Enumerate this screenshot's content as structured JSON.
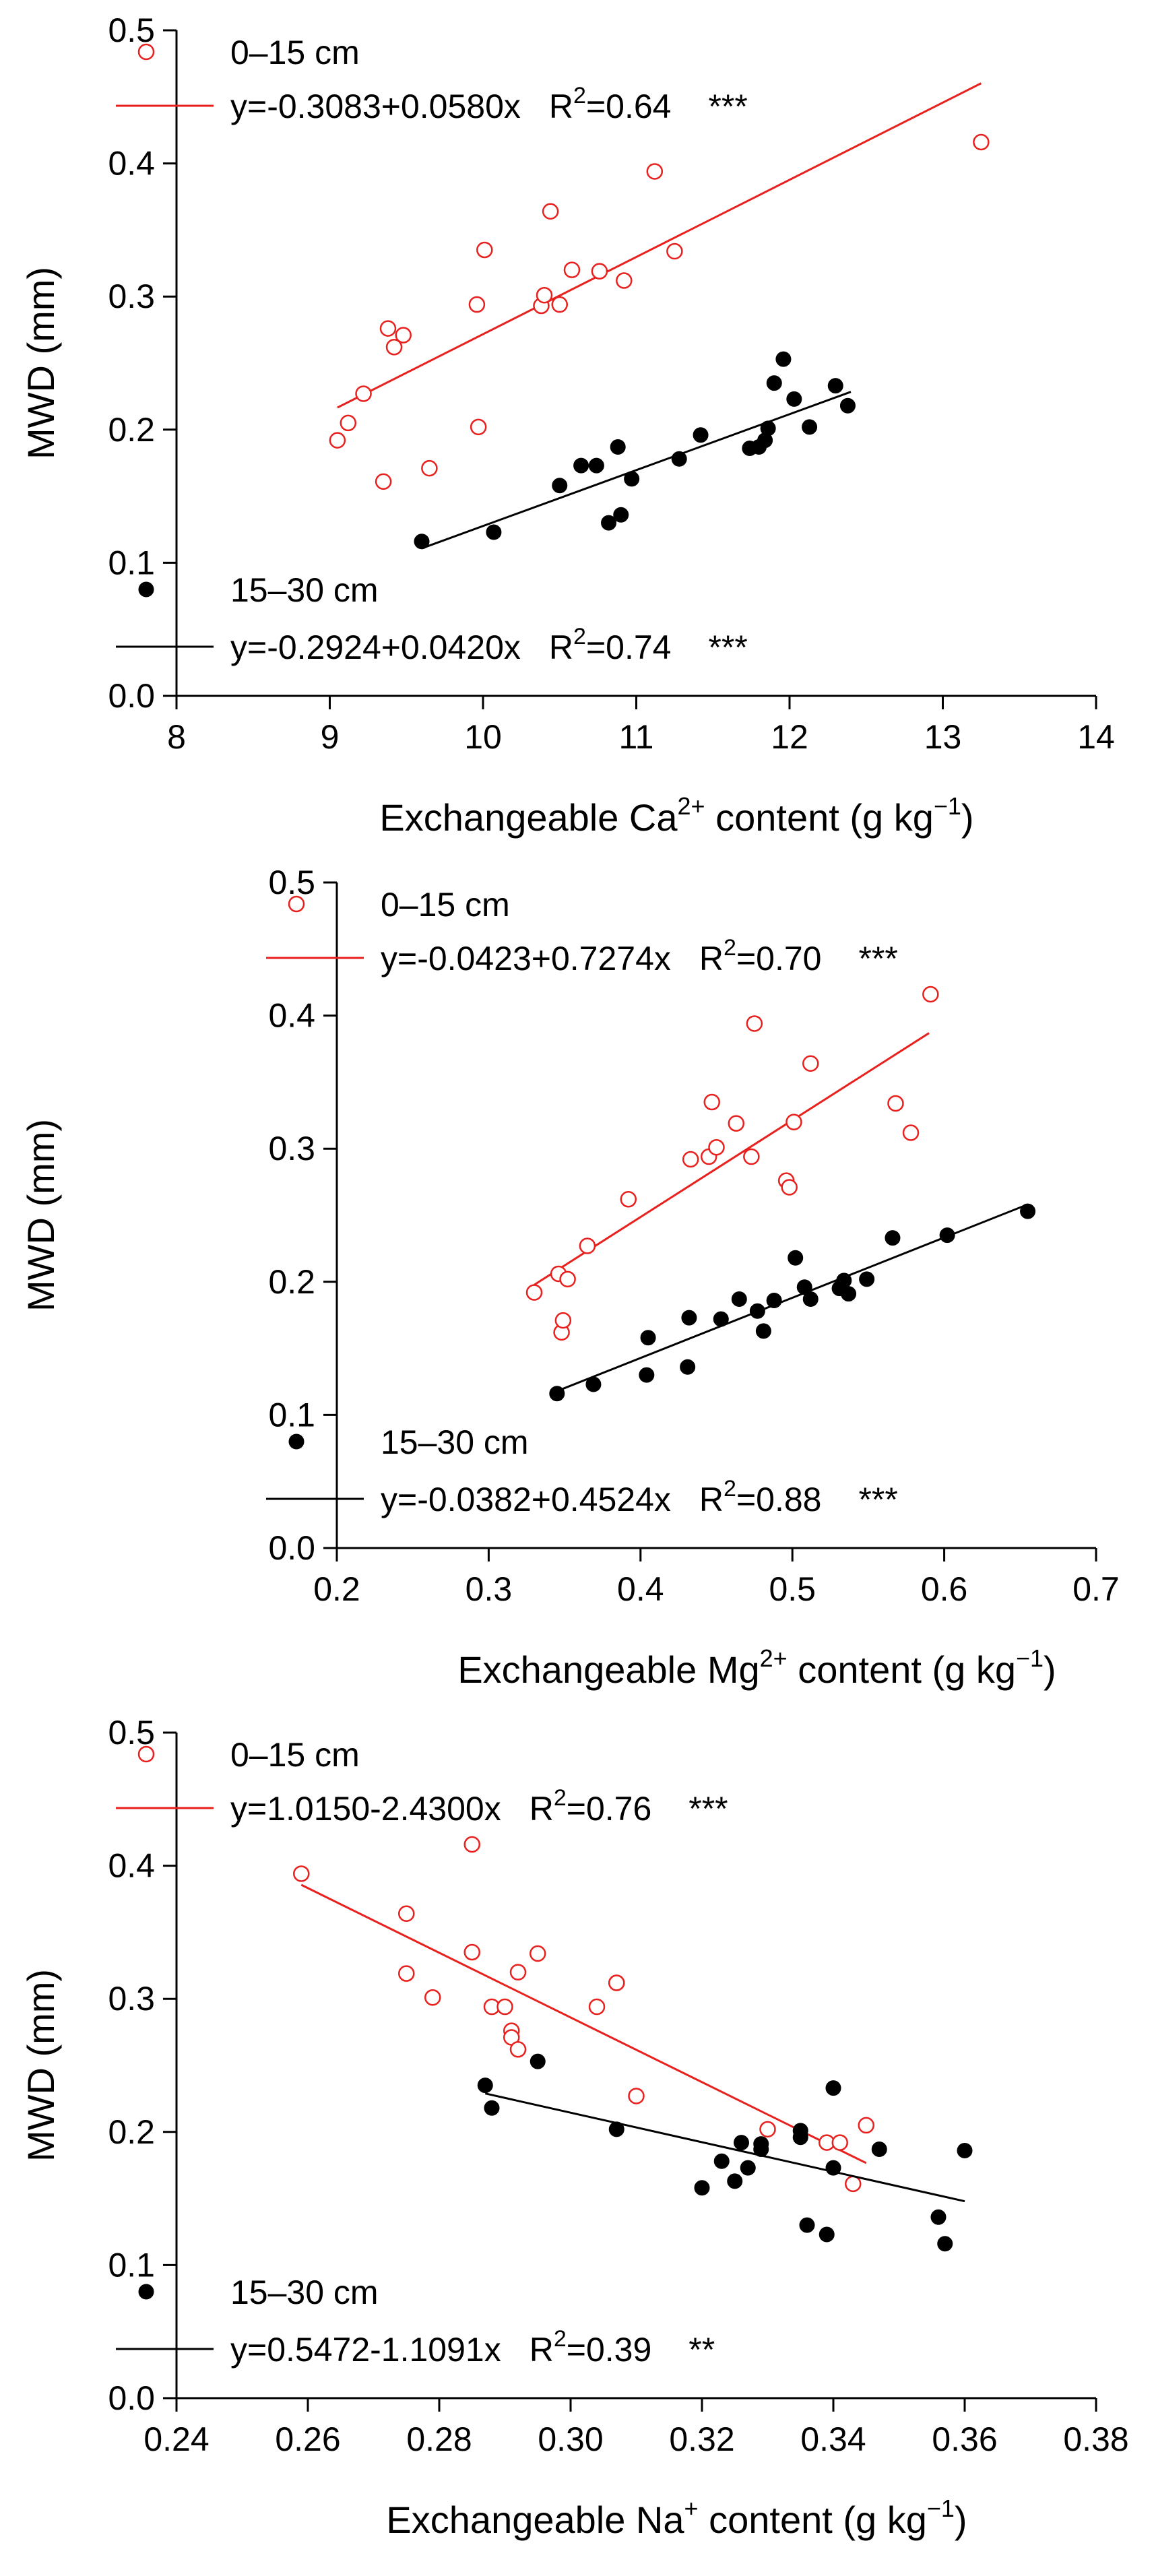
{
  "colors": {
    "series_0_15": "#e8211e",
    "series_15_30": "#000000"
  },
  "chart_data": [
    {
      "type": "scatter",
      "ylabel": "MWD (mm)",
      "xlabel_prefix": "Exchangeable Ca",
      "xlabel_ion_sup": "2+",
      "xlabel_unit": " content (g kg",
      "xlabel_unit_sup": "−1",
      "xlabel_unit_end": ")",
      "xlim": [
        8,
        14
      ],
      "ylim": [
        0.0,
        0.5
      ],
      "xticks": [
        8,
        9,
        10,
        11,
        12,
        13,
        14
      ],
      "xtick_labels": [
        "8",
        "9",
        "10",
        "11",
        "12",
        "13",
        "14"
      ],
      "yticks": [
        0.0,
        0.1,
        0.2,
        0.3,
        0.4,
        0.5
      ],
      "ytick_labels": [
        "0.0",
        "0.1",
        "0.2",
        "0.3",
        "0.4",
        "0.5"
      ],
      "series": [
        {
          "name": "0–15 cm",
          "marker": "open-circle",
          "fit": {
            "intercept": -0.3083,
            "slope": 0.058,
            "x_range": [
              9.05,
              13.25
            ]
          },
          "eq_text": "y=-0.3083+0.0580x",
          "r2_prefix": "R",
          "r2_sup": "2",
          "r2_value": "=0.64",
          "sig": "***",
          "x": [
            9.05,
            9.12,
            9.22,
            9.35,
            9.38,
            9.42,
            9.48,
            9.65,
            9.96,
            9.97,
            10.01,
            10.38,
            10.4,
            10.44,
            10.5,
            10.58,
            10.76,
            10.92,
            11.12,
            11.25,
            13.25
          ],
          "y": [
            0.192,
            0.205,
            0.227,
            0.161,
            0.276,
            0.262,
            0.271,
            0.171,
            0.294,
            0.202,
            0.335,
            0.293,
            0.301,
            0.364,
            0.294,
            0.32,
            0.319,
            0.312,
            0.394,
            0.334,
            0.416
          ]
        },
        {
          "name": "15–30 cm",
          "marker": "filled-circle",
          "fit": {
            "intercept": -0.2924,
            "slope": 0.042,
            "x_range": [
              9.6,
              12.4
            ]
          },
          "eq_text": "y=-0.2924+0.0420x",
          "r2_prefix": "R",
          "r2_sup": "2",
          "r2_value": "=0.74",
          "sig": "***",
          "x": [
            9.6,
            10.07,
            10.5,
            10.64,
            10.74,
            10.82,
            10.88,
            10.9,
            10.97,
            11.28,
            11.42,
            11.74,
            11.8,
            11.84,
            11.86,
            11.9,
            11.96,
            12.03,
            12.13,
            12.3,
            12.38
          ],
          "y": [
            0.116,
            0.123,
            0.158,
            0.173,
            0.173,
            0.13,
            0.187,
            0.136,
            0.163,
            0.178,
            0.196,
            0.186,
            0.187,
            0.192,
            0.201,
            0.235,
            0.253,
            0.223,
            0.202,
            0.233,
            0.218
          ]
        }
      ]
    },
    {
      "type": "scatter",
      "ylabel": "MWD (mm)",
      "xlabel_prefix": "Exchangeable Mg",
      "xlabel_ion_sup": "2+",
      "xlabel_unit": " content (g kg",
      "xlabel_unit_sup": "−1",
      "xlabel_unit_end": ")",
      "xlim": [
        0.2,
        0.7
      ],
      "ylim": [
        0.0,
        0.5
      ],
      "xticks": [
        0.2,
        0.3,
        0.4,
        0.5,
        0.6,
        0.7
      ],
      "xtick_labels": [
        "0.2",
        "0.3",
        "0.4",
        "0.5",
        "0.6",
        "0.7"
      ],
      "yticks": [
        0.0,
        0.1,
        0.2,
        0.3,
        0.4,
        0.5
      ],
      "ytick_labels": [
        "0.0",
        "0.1",
        "0.2",
        "0.3",
        "0.4",
        "0.5"
      ],
      "series": [
        {
          "name": "0–15 cm",
          "marker": "open-circle",
          "fit": {
            "intercept": -0.0423,
            "slope": 0.7274,
            "x_range": [
              0.33,
              0.59
            ]
          },
          "eq_text": "y=-0.0423+0.7274x",
          "r2_prefix": "R",
          "r2_sup": "2",
          "r2_value": "=0.70",
          "sig": "***",
          "x": [
            0.33,
            0.346,
            0.348,
            0.349,
            0.352,
            0.365,
            0.392,
            0.433,
            0.445,
            0.447,
            0.45,
            0.463,
            0.473,
            0.475,
            0.496,
            0.498,
            0.501,
            0.512,
            0.568,
            0.578,
            0.591
          ],
          "y": [
            0.192,
            0.206,
            0.162,
            0.171,
            0.202,
            0.227,
            0.262,
            0.292,
            0.294,
            0.335,
            0.301,
            0.319,
            0.294,
            0.394,
            0.276,
            0.271,
            0.32,
            0.364,
            0.334,
            0.312,
            0.416
          ]
        },
        {
          "name": "15–30 cm",
          "marker": "filled-circle",
          "fit": {
            "intercept": -0.0382,
            "slope": 0.4524,
            "x_range": [
              0.345,
              0.655
            ]
          },
          "eq_text": "y=-0.0382+0.4524x",
          "r2_prefix": "R",
          "r2_sup": "2",
          "r2_value": "=0.88",
          "sig": "***",
          "x": [
            0.345,
            0.369,
            0.404,
            0.405,
            0.431,
            0.432,
            0.453,
            0.465,
            0.477,
            0.481,
            0.488,
            0.502,
            0.508,
            0.512,
            0.531,
            0.534,
            0.537,
            0.549,
            0.566,
            0.602,
            0.655
          ],
          "y": [
            0.116,
            0.123,
            0.13,
            0.158,
            0.136,
            0.173,
            0.172,
            0.187,
            0.178,
            0.163,
            0.186,
            0.218,
            0.196,
            0.187,
            0.195,
            0.201,
            0.191,
            0.202,
            0.233,
            0.235,
            0.253
          ]
        }
      ]
    },
    {
      "type": "scatter",
      "ylabel": "MWD (mm)",
      "xlabel_prefix": "Exchangeable Na",
      "xlabel_ion_sup": "+",
      "xlabel_unit": " content (g kg",
      "xlabel_unit_sup": "−1",
      "xlabel_unit_end": ")",
      "xlim": [
        0.24,
        0.38
      ],
      "ylim": [
        0.0,
        0.5
      ],
      "xticks": [
        0.24,
        0.26,
        0.28,
        0.3,
        0.32,
        0.34,
        0.36,
        0.38
      ],
      "xtick_labels": [
        "0.24",
        "0.26",
        "0.28",
        "0.30",
        "0.32",
        "0.34",
        "0.36",
        "0.38"
      ],
      "yticks": [
        0.0,
        0.1,
        0.2,
        0.3,
        0.4,
        0.5
      ],
      "ytick_labels": [
        "0.0",
        "0.1",
        "0.2",
        "0.3",
        "0.4",
        "0.5"
      ],
      "series": [
        {
          "name": "0–15 cm",
          "marker": "open-circle",
          "fit": {
            "intercept": 1.015,
            "slope": -2.43,
            "x_range": [
              0.259,
              0.345
            ]
          },
          "eq_text": "y=1.0150-2.4300x",
          "r2_prefix": "R",
          "r2_sup": "2",
          "r2_value": "=0.76",
          "sig": "***",
          "x": [
            0.259,
            0.275,
            0.275,
            0.279,
            0.285,
            0.285,
            0.288,
            0.29,
            0.291,
            0.291,
            0.292,
            0.292,
            0.295,
            0.304,
            0.307,
            0.307,
            0.31,
            0.33,
            0.339,
            0.341,
            0.343,
            0.345
          ],
          "y": [
            0.394,
            0.364,
            0.319,
            0.301,
            0.416,
            0.335,
            0.294,
            0.294,
            0.276,
            0.271,
            0.262,
            0.32,
            0.334,
            0.294,
            0.312,
            0.312,
            0.227,
            0.202,
            0.192,
            0.192,
            0.161,
            0.205
          ]
        },
        {
          "name": "15–30 cm",
          "marker": "filled-circle",
          "fit": {
            "intercept": 0.5472,
            "slope": -1.1091,
            "x_range": [
              0.287,
              0.36
            ]
          },
          "eq_text": "y=0.5472-1.1091x",
          "r2_prefix": "R",
          "r2_sup": "2",
          "r2_value": "=0.39",
          "sig": "**",
          "x": [
            0.287,
            0.288,
            0.295,
            0.307,
            0.32,
            0.323,
            0.325,
            0.326,
            0.327,
            0.329,
            0.329,
            0.335,
            0.335,
            0.336,
            0.339,
            0.34,
            0.34,
            0.347,
            0.356,
            0.357,
            0.36
          ],
          "y": [
            0.235,
            0.218,
            0.253,
            0.202,
            0.158,
            0.178,
            0.163,
            0.192,
            0.173,
            0.187,
            0.191,
            0.196,
            0.201,
            0.13,
            0.123,
            0.233,
            0.173,
            0.187,
            0.136,
            0.116,
            0.186
          ]
        }
      ]
    }
  ]
}
